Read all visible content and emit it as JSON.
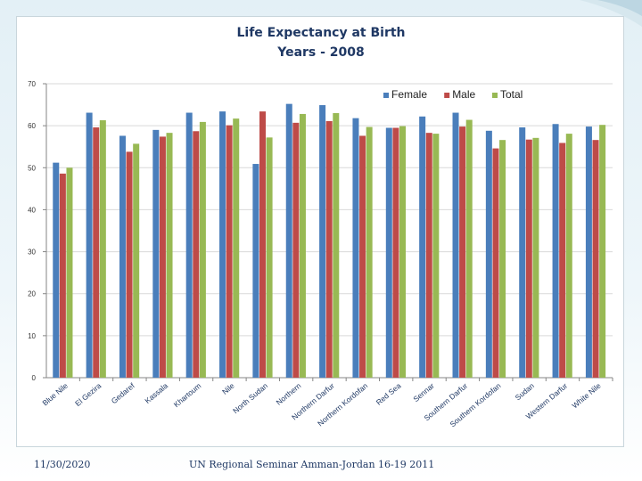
{
  "chart_data": {
    "type": "bar",
    "title_line1": "Life Expectancy at  Birth",
    "title_line2": "Years - 2008",
    "xlabel": "",
    "ylabel": "",
    "ylim": [
      0,
      70
    ],
    "yticks": [
      "0",
      "10",
      "20",
      "30",
      "40",
      "50",
      "60",
      "70"
    ],
    "categories": [
      "Blue Nile",
      "El Gezira",
      "Gedaref",
      "Kassala",
      "Khartoum",
      "Nile",
      "North Sudan",
      "Northern",
      "Northern Darfur",
      "Northern Kordofan",
      "Red Sea",
      "Sennar",
      "Southern Darfur",
      "Southern Kordofan",
      "Sudan",
      "Western Darfur",
      "White Nile"
    ],
    "series": [
      {
        "name": "Female",
        "color": "#4a7ebb",
        "values": [
          51.2,
          63.1,
          57.6,
          59.0,
          63.1,
          63.4,
          50.9,
          65.2,
          64.9,
          61.8,
          59.5,
          62.2,
          63.1,
          58.8,
          59.6,
          60.4,
          59.8
        ]
      },
      {
        "name": "Male",
        "color": "#be4b48",
        "values": [
          48.6,
          59.6,
          53.8,
          57.4,
          58.7,
          60.1,
          63.4,
          60.7,
          61.1,
          57.6,
          59.5,
          58.3,
          59.8,
          54.6,
          56.7,
          55.9,
          56.6
        ]
      },
      {
        "name": "Total",
        "color": "#98b954",
        "values": [
          50.0,
          61.3,
          55.7,
          58.3,
          60.9,
          61.7,
          57.2,
          62.8,
          63.0,
          59.7,
          59.9,
          58.1,
          61.4,
          56.6,
          57.1,
          58.1,
          60.2
        ]
      }
    ],
    "legend_position": "top-right",
    "grid": true
  },
  "footer": {
    "date": "11/30/2020",
    "seminar": "UN Regional Seminar  Amman-Jordan 16-19 2011"
  },
  "colors": {
    "title": "#1f3864",
    "axis": "#868686",
    "grid": "#d9d9d9"
  }
}
